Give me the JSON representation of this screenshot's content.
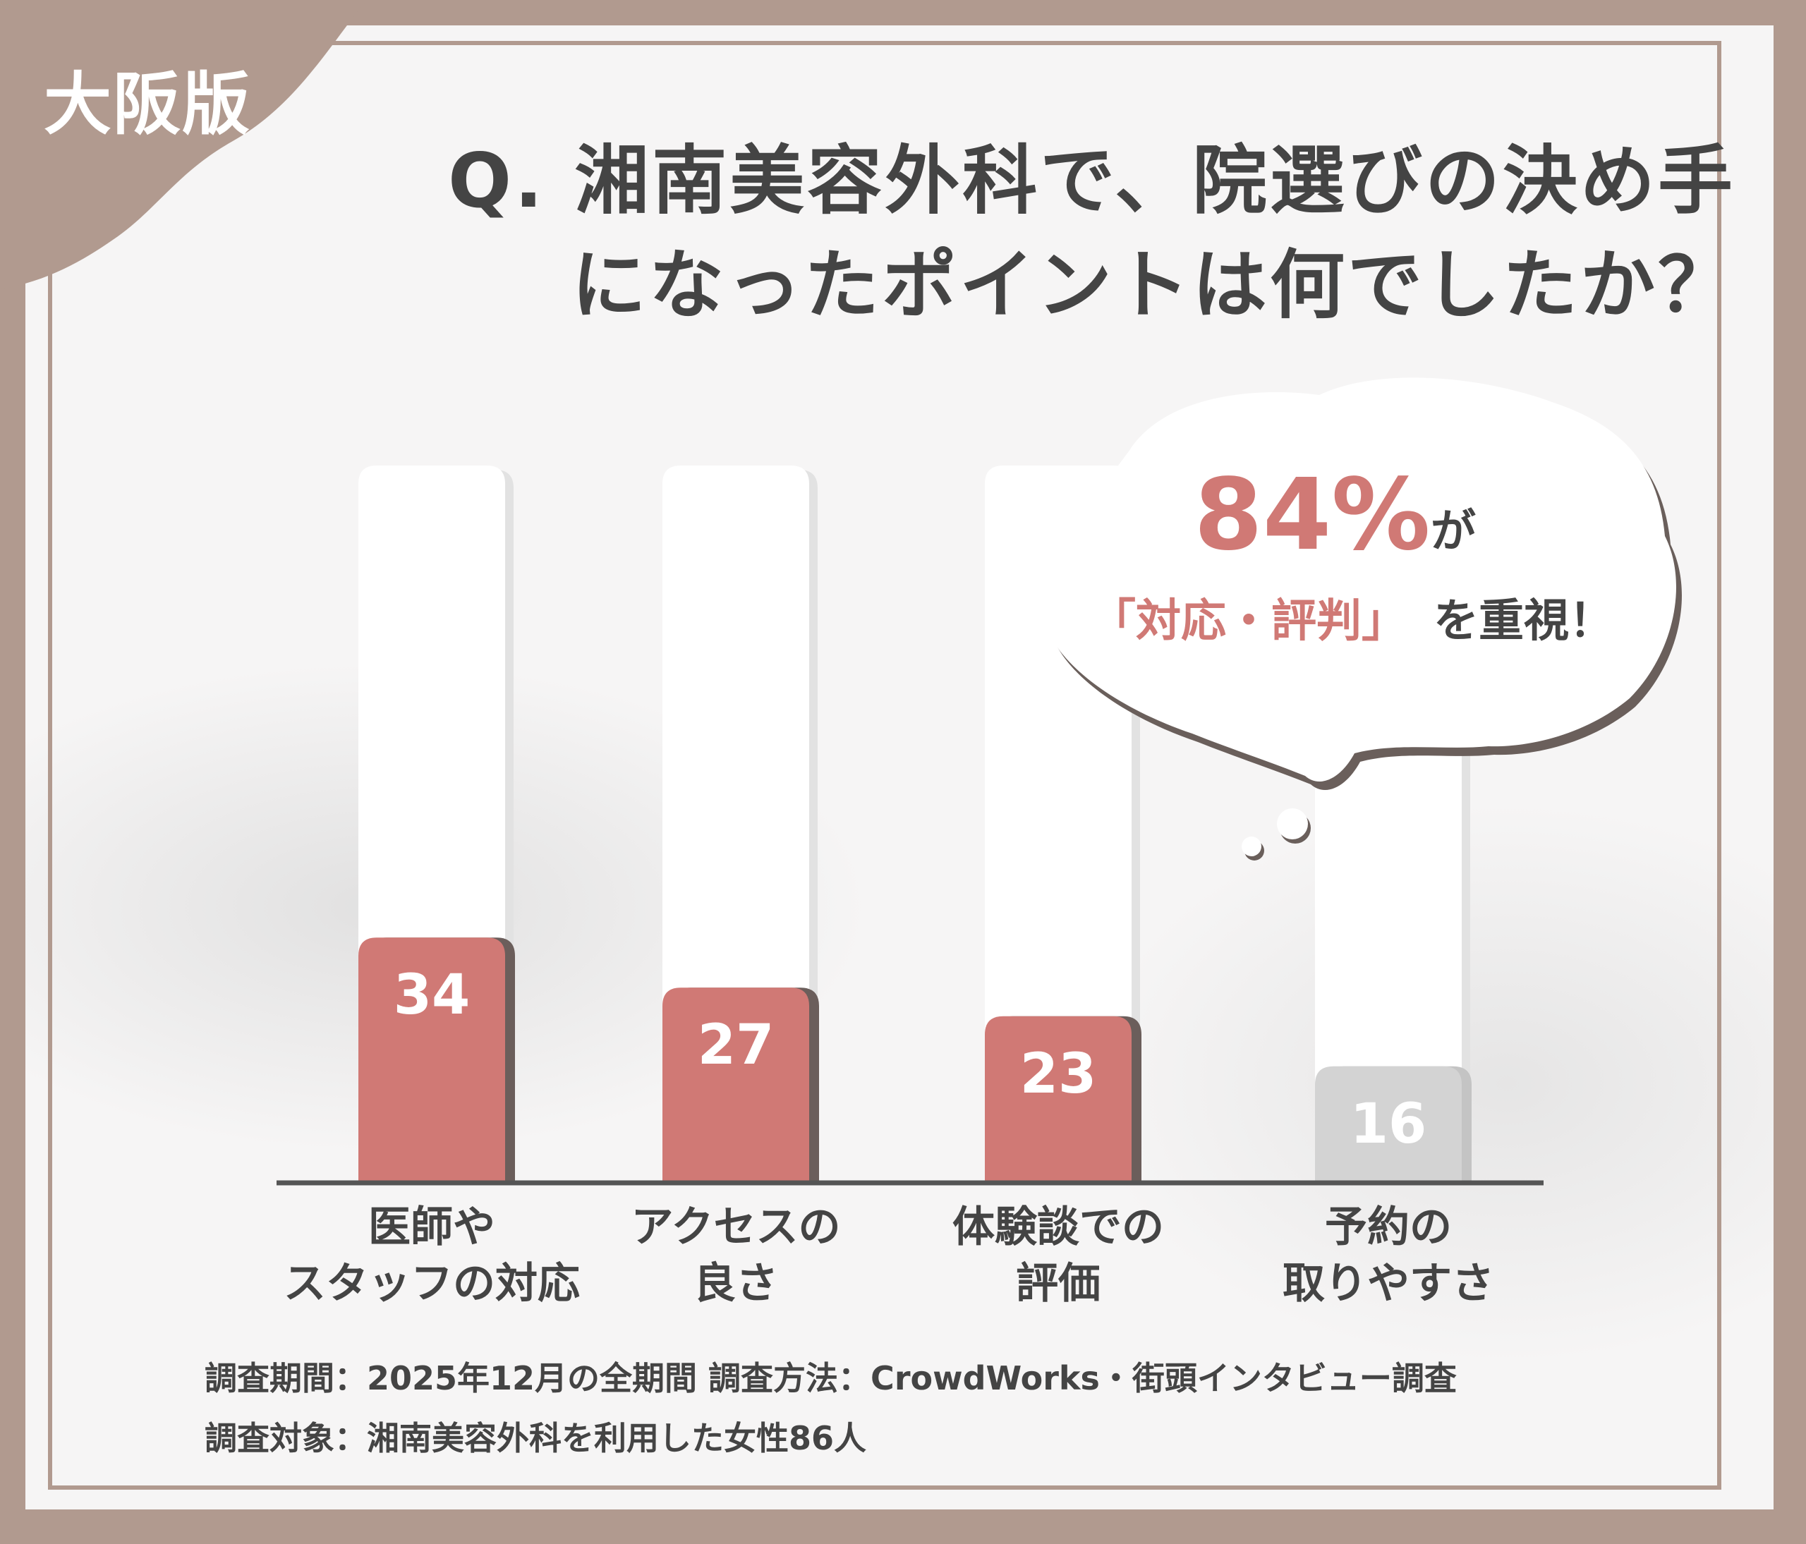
{
  "badge": "大阪版",
  "title": {
    "line1": "Q. 湘南美容外科で、院選びの決め手",
    "line2": "になったポイントは何でしたか？"
  },
  "callout": {
    "percent": "84%",
    "particle": "が",
    "highlight": "「対応・評判」",
    "suffix": "を重視！"
  },
  "notes": {
    "line1": "調査期間：2025年12月の全期間  調査方法：CrowdWorks・街頭インタビュー調査",
    "line2": "調査対象：湘南美容外科を利用した女性86人"
  },
  "colors": {
    "highlight_bar": "#d07975",
    "muted_bar": "#d3d3d3",
    "frame": "#b19a8f",
    "text": "#444444"
  },
  "chart_data": {
    "type": "bar",
    "categories": [
      [
        "医師や",
        "スタッフの対応"
      ],
      [
        "アクセスの",
        "良さ"
      ],
      [
        "体験談での",
        "評価"
      ],
      [
        "予約の",
        "取りやすさ"
      ]
    ],
    "values": [
      34,
      27,
      23,
      16
    ],
    "highlighted": [
      true,
      true,
      true,
      false
    ],
    "ylim": [
      0,
      100
    ],
    "grid": false,
    "title": "",
    "xlabel": "",
    "ylabel": ""
  }
}
